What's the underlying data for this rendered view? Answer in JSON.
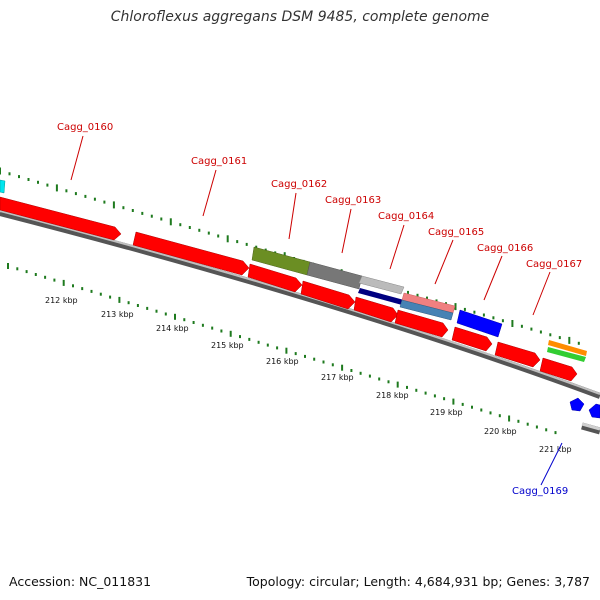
{
  "title": "Chloroflexus aggregans DSM 9485, complete genome",
  "footer": {
    "accession": "Accession: NC_011831",
    "topology": "Topology: circular; Length: 4,684,931 bp; Genes: 3,787"
  },
  "colors": {
    "forward_gene": "#ff0000",
    "label_red": "#cc0000",
    "label_blue": "#0000cc",
    "tick_green": "#1e7a1e",
    "backbone": "#888888",
    "cyan": "#00ffff",
    "blue": "#0000ff",
    "olive": "#6b8e23",
    "gray": "#777777",
    "navy": "#000080",
    "pink": "#f08080",
    "steel": "#4682b4",
    "orange": "#ff8c00",
    "green": "#32cd32",
    "silver": "#c0c0c0"
  },
  "scale_labels": [
    "212 kbp",
    "213 kbp",
    "214 kbp",
    "215 kbp",
    "216 kbp",
    "217 kbp",
    "218 kbp",
    "219 kbp",
    "220 kbp",
    "221 kbp"
  ],
  "gene_labels": [
    {
      "text": "Cagg_0160",
      "color": "label_red"
    },
    {
      "text": "Cagg_0161",
      "color": "label_red"
    },
    {
      "text": "Cagg_0162",
      "color": "label_red"
    },
    {
      "text": "Cagg_0163",
      "color": "label_red"
    },
    {
      "text": "Cagg_0164",
      "color": "label_red"
    },
    {
      "text": "Cagg_0165",
      "color": "label_red"
    },
    {
      "text": "Cagg_0166",
      "color": "label_red"
    },
    {
      "text": "Cagg_0167",
      "color": "label_red"
    },
    {
      "text": "Cagg_0169",
      "color": "label_blue"
    }
  ]
}
